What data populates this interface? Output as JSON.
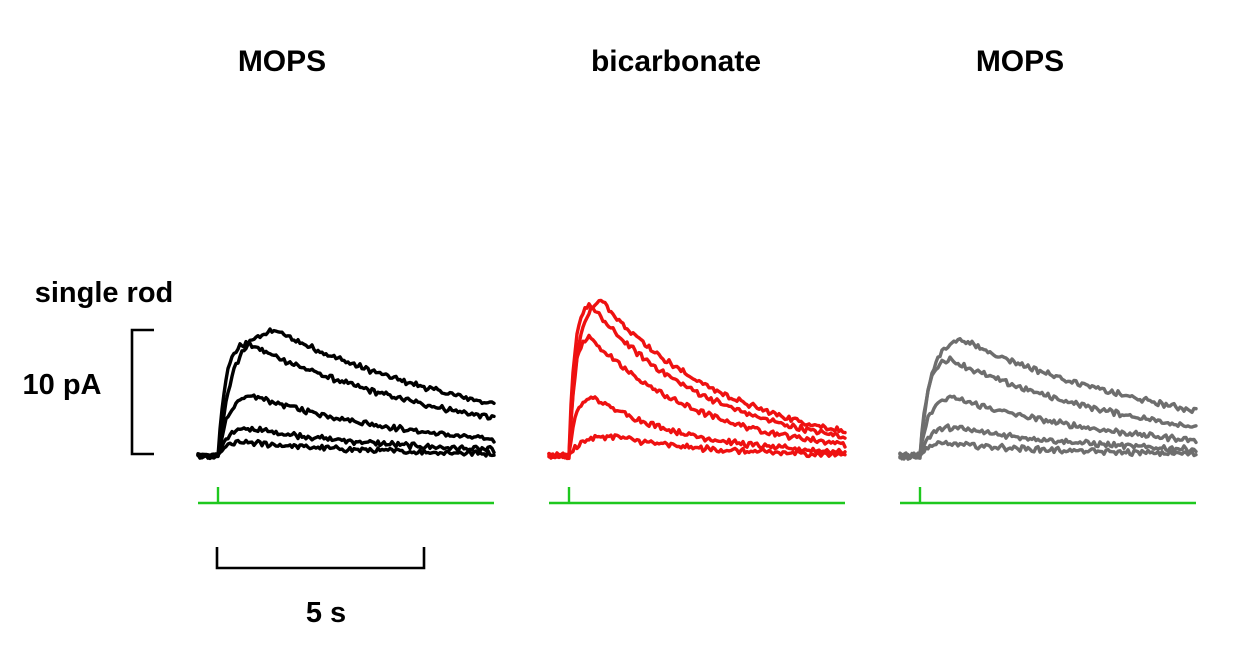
{
  "chart_data": {
    "type": "line",
    "ylabel": "single rod",
    "scale_bars": {
      "amplitude_label": "10 pA",
      "amplitude_value_pA": 10,
      "time_label": "5 s",
      "time_value_s": 5
    },
    "stimulus_color": "#1ec81e",
    "panels": [
      {
        "title": "MOPS",
        "color": "#000000",
        "series": [
          {
            "peak_pA": 10.1,
            "t_peak_s": 1.4,
            "tau_s": 6.0
          },
          {
            "peak_pA": 9.1,
            "t_peak_s": 0.7,
            "tau_s": 5.5
          },
          {
            "peak_pA": 4.8,
            "t_peak_s": 0.9,
            "tau_s": 4.5
          },
          {
            "peak_pA": 2.2,
            "t_peak_s": 0.8,
            "tau_s": 4.0
          },
          {
            "peak_pA": 1.1,
            "t_peak_s": 0.7,
            "tau_s": 3.5
          }
        ]
      },
      {
        "title": "bicarbonate",
        "color": "#ee1111",
        "series": [
          {
            "peak_pA": 12.5,
            "t_peak_s": 0.8,
            "tau_s": 3.2
          },
          {
            "peak_pA": 12.2,
            "t_peak_s": 0.5,
            "tau_s": 3.0
          },
          {
            "peak_pA": 9.6,
            "t_peak_s": 0.5,
            "tau_s": 2.7
          },
          {
            "peak_pA": 4.7,
            "t_peak_s": 0.6,
            "tau_s": 2.3
          },
          {
            "peak_pA": 1.6,
            "t_peak_s": 1.1,
            "tau_s": 2.2
          }
        ]
      },
      {
        "title": "MOPS",
        "color": "#6e6e6e",
        "series": [
          {
            "peak_pA": 9.4,
            "t_peak_s": 1.0,
            "tau_s": 6.0
          },
          {
            "peak_pA": 7.8,
            "t_peak_s": 0.7,
            "tau_s": 5.0
          },
          {
            "peak_pA": 4.7,
            "t_peak_s": 0.8,
            "tau_s": 4.5
          },
          {
            "peak_pA": 2.3,
            "t_peak_s": 0.8,
            "tau_s": 4.0
          },
          {
            "peak_pA": 1.0,
            "t_peak_s": 0.7,
            "tau_s": 3.5
          }
        ]
      }
    ]
  }
}
